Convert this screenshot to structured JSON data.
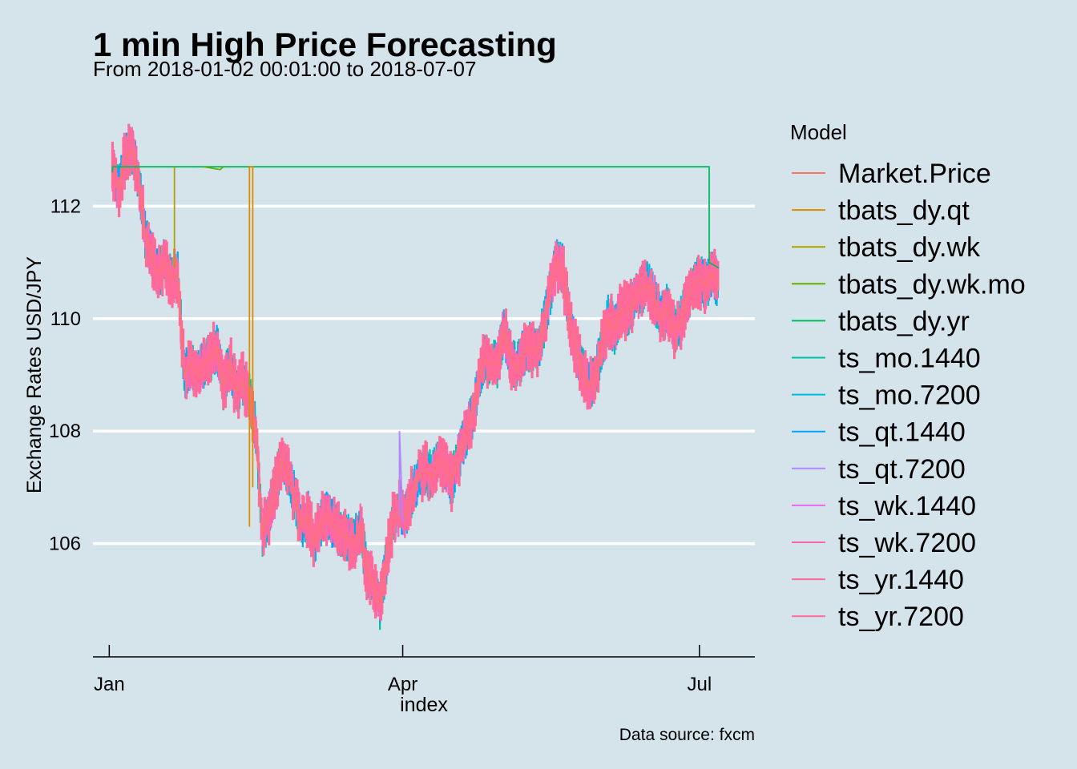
{
  "chart_data": {
    "type": "line",
    "title": "1 min High Price Forecasting",
    "subtitle": "From 2018-01-02 00:01:00 to 2018-07-07",
    "xlabel": "index",
    "ylabel": "Exchange Rates USD/JPY",
    "caption": "Data source: fxcm",
    "legend_title": "Model",
    "legend_position": "right",
    "grid": "horizontal major only",
    "x_ticks": [
      "Jan",
      "Apr",
      "Jul"
    ],
    "x_tick_dates": [
      "2018-01-01",
      "2018-04-01",
      "2018-07-01"
    ],
    "xlim": [
      "2017-12-27",
      "2018-07-18"
    ],
    "y_ticks": [
      106,
      108,
      110,
      112
    ],
    "ylim": [
      104.1,
      113.7
    ],
    "series": [
      {
        "name": "Market.Price",
        "color": "#F8766D"
      },
      {
        "name": "tbats_dy.qt",
        "color": "#DB8E00"
      },
      {
        "name": "tbats_dy.wk",
        "color": "#AEA200"
      },
      {
        "name": "tbats_dy.wk.mo",
        "color": "#64B200"
      },
      {
        "name": "tbats_dy.yr",
        "color": "#00BD5C"
      },
      {
        "name": "ts_mo.1440",
        "color": "#00C1A7"
      },
      {
        "name": "ts_mo.7200",
        "color": "#00BADE"
      },
      {
        "name": "ts_qt.1440",
        "color": "#00A6FF"
      },
      {
        "name": "ts_qt.7200",
        "color": "#B385FF"
      },
      {
        "name": "ts_wk.1440",
        "color": "#EF67EB"
      },
      {
        "name": "ts_wk.7200",
        "color": "#FF63B6"
      },
      {
        "name": "ts_yr.1440",
        "color": "#FF6C91"
      },
      {
        "name": "ts_yr.7200",
        "color": "#FF6A98"
      }
    ],
    "market_price_approx": {
      "dates": [
        "2018-01-02",
        "2018-01-04",
        "2018-01-06",
        "2018-01-08",
        "2018-01-10",
        "2018-01-12",
        "2018-01-14",
        "2018-01-16",
        "2018-01-18",
        "2018-01-20",
        "2018-01-22",
        "2018-01-24",
        "2018-01-26",
        "2018-01-28",
        "2018-01-30",
        "2018-02-01",
        "2018-02-03",
        "2018-02-05",
        "2018-02-07",
        "2018-02-09",
        "2018-02-11",
        "2018-02-13",
        "2018-02-15",
        "2018-02-17",
        "2018-02-19",
        "2018-02-21",
        "2018-02-23",
        "2018-02-25",
        "2018-02-27",
        "2018-03-01",
        "2018-03-03",
        "2018-03-05",
        "2018-03-07",
        "2018-03-09",
        "2018-03-11",
        "2018-03-13",
        "2018-03-15",
        "2018-03-17",
        "2018-03-19",
        "2018-03-21",
        "2018-03-23",
        "2018-03-25",
        "2018-03-27",
        "2018-03-29",
        "2018-03-31",
        "2018-04-02",
        "2018-04-04",
        "2018-04-06",
        "2018-04-08",
        "2018-04-10",
        "2018-04-12",
        "2018-04-14",
        "2018-04-16",
        "2018-04-18",
        "2018-04-20",
        "2018-04-22",
        "2018-04-24",
        "2018-04-26",
        "2018-04-28",
        "2018-04-30",
        "2018-05-02",
        "2018-05-04",
        "2018-05-06",
        "2018-05-08",
        "2018-05-10",
        "2018-05-12",
        "2018-05-14",
        "2018-05-16",
        "2018-05-18",
        "2018-05-20",
        "2018-05-22",
        "2018-05-24",
        "2018-05-26",
        "2018-05-28",
        "2018-05-30",
        "2018-06-01",
        "2018-06-03",
        "2018-06-05",
        "2018-06-07",
        "2018-06-09",
        "2018-06-11",
        "2018-06-13",
        "2018-06-15",
        "2018-06-17",
        "2018-06-19",
        "2018-06-21",
        "2018-06-23",
        "2018-06-25",
        "2018-06-27",
        "2018-06-29",
        "2018-07-01",
        "2018-07-03",
        "2018-07-05",
        "2018-07-07"
      ],
      "values": [
        112.6,
        112.3,
        112.9,
        113.0,
        112.5,
        111.5,
        111.1,
        110.8,
        111.0,
        110.7,
        110.8,
        109.0,
        109.2,
        109.0,
        109.2,
        109.3,
        109.5,
        108.8,
        109.2,
        108.7,
        108.9,
        108.6,
        108.0,
        106.2,
        106.5,
        107.0,
        107.5,
        107.2,
        106.8,
        106.3,
        106.5,
        106.0,
        106.4,
        106.5,
        106.3,
        106.2,
        106.1,
        106.0,
        106.3,
        105.5,
        105.3,
        104.9,
        105.7,
        106.4,
        106.6,
        106.5,
        106.9,
        107.2,
        107.3,
        107.2,
        107.5,
        107.4,
        107.1,
        107.5,
        107.9,
        108.2,
        108.8,
        109.3,
        109.2,
        109.2,
        109.8,
        109.3,
        109.1,
        109.4,
        109.5,
        109.4,
        109.8,
        110.4,
        111.0,
        110.9,
        110.0,
        109.5,
        109.1,
        108.8,
        108.9,
        109.5,
        110.0,
        109.8,
        110.2,
        110.1,
        110.3,
        110.5,
        110.6,
        110.4,
        110.0,
        110.2,
        109.8,
        109.9,
        110.3,
        110.6,
        110.7,
        110.6,
        110.8,
        110.6
      ]
    },
    "tbats_dy_yr_approx": {
      "x": [
        "2018-01-02",
        "2018-01-02",
        "2018-07-04",
        "2018-07-04",
        "2018-07-07"
      ],
      "y": [
        112.6,
        112.7,
        112.7,
        111.0,
        110.9
      ]
    },
    "tbats_dy_wk_mo_approx": {
      "x": [
        "2018-01-30",
        "2018-02-04",
        "2018-02-05"
      ],
      "y": [
        112.7,
        112.65,
        112.7
      ]
    },
    "tbats_dy_wk_approx": {
      "x": [
        "2018-01-21",
        "2018-01-21",
        "2018-01-21"
      ],
      "y": [
        110.9,
        112.7,
        112.7
      ]
    },
    "tbats_dy_qt_approx": {
      "x": [
        "2018-02-13",
        "2018-02-13",
        "2018-02-14",
        "2018-02-14"
      ],
      "y": [
        106.3,
        112.7,
        112.7,
        107.0
      ]
    },
    "ts_wk_1440_spike": {
      "x": [
        "2018-03-31",
        "2018-03-31",
        "2018-04-01"
      ],
      "y": [
        106.5,
        108.0,
        106.4
      ]
    }
  }
}
